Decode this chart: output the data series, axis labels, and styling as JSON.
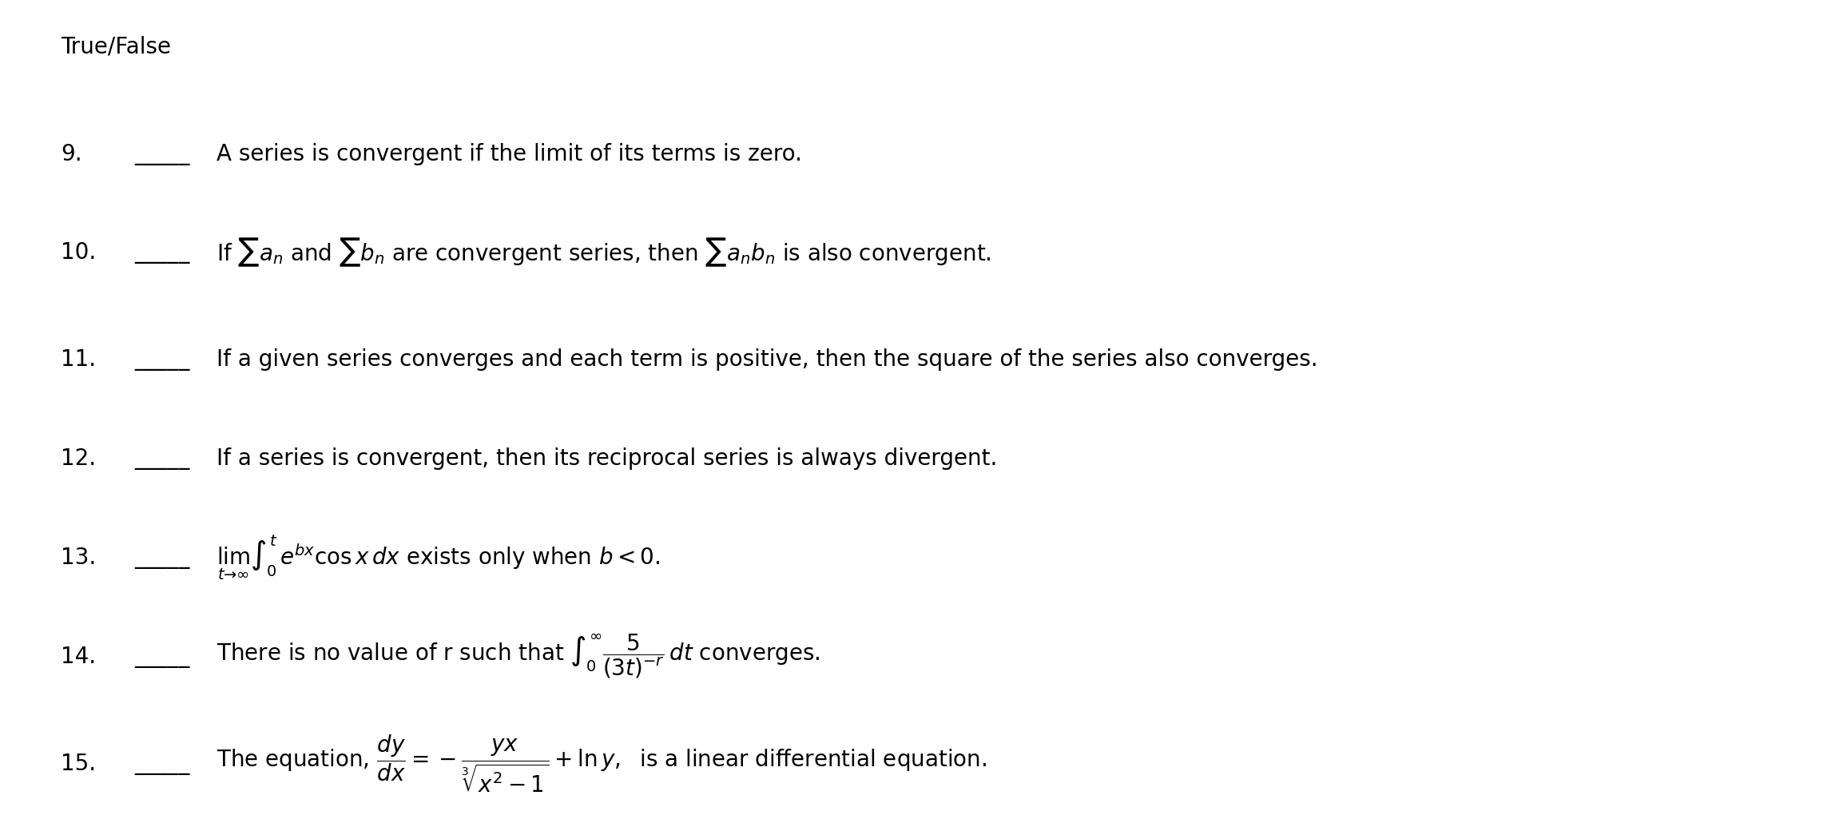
{
  "title": "True/False",
  "background_color": "#ffffff",
  "text_color": "#000000",
  "figsize": [
    23.12,
    10.45
  ],
  "dpi": 100,
  "items": [
    {
      "number": "9.",
      "blank": "_____ ",
      "text_plain": "A series is convergent if the limit of its terms is zero.",
      "has_math": false
    },
    {
      "number": "10.",
      "blank": "_____ ",
      "text_plain": null,
      "has_math": true,
      "math_str": "If $\\sum a_n$ and $\\sum b_n$ are convergent series, then $\\sum a_n b_n$ is also convergent."
    },
    {
      "number": "11.",
      "blank": "_____ ",
      "text_plain": "If a given series converges and each term is positive, then the square of the series also converges.",
      "has_math": false
    },
    {
      "number": "12.",
      "blank": "_____ ",
      "text_plain": "If a series is convergent, then its reciprocal series is always divergent.",
      "has_math": false
    },
    {
      "number": "13.",
      "blank": "_____ ",
      "text_plain": null,
      "has_math": true,
      "math_str": "$\\lim_{t\\to\\infty} \\int_0^t e^{bx} \\cos x \\, dx$ exists only when $b < 0$."
    },
    {
      "number": "14.",
      "blank": "_____ ",
      "text_plain": null,
      "has_math": true,
      "math_str": "There is no value of r such that $\\int_0^{\\infty} \\dfrac{5}{(3t)^{-r}}\\, dt$ converges."
    },
    {
      "number": "15.",
      "blank": "_____ ",
      "text_plain": null,
      "has_math": true,
      "math_str": "The equation, $\\dfrac{dy}{dx} = -\\dfrac{yx}{\\sqrt[3]{x^2-1}} + \\ln y,$  is a linear differential equation."
    }
  ]
}
